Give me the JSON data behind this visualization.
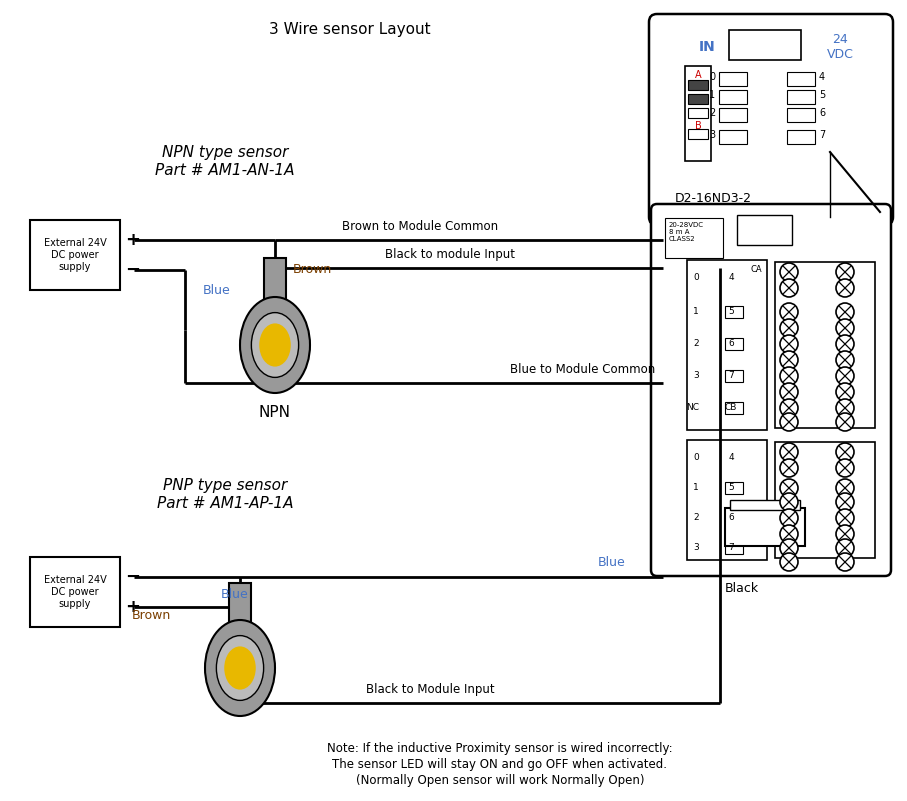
{
  "title": "3 Wire sensor Layout",
  "bg_color": "#ffffff",
  "text_color": "#000000",
  "npn_label1": "NPN type sensor",
  "npn_label2": "Part # AM1-AN-1A",
  "pnp_label1": "PNP type sensor",
  "pnp_label2": "Part # AM1-AP-1A",
  "npn_label": "NPN",
  "box_label": "External 24V\nDC power\nsupply",
  "note_line1": "Note: If the inductive Proximity sensor is wired incorrectly:",
  "note_line2": "The sensor LED will stay ON and go OFF when activated.",
  "note_line3": "(Normally Open sensor will work Normally Open)",
  "brown_to_common": "Brown to Module Common",
  "black_to_input_npn": "Black to module Input",
  "blue_to_common": "Blue to Module Common",
  "blue_pnp": "Blue",
  "black_pnp": "Black",
  "black_to_input_pnp": "Black to Module Input",
  "blue_npn": "Blue",
  "brown_npn": "Brown",
  "blue_pnp2": "Blue",
  "brown_pnp2": "Brown",
  "module_label": "D2-16ND3-2",
  "in_label": "IN",
  "vdc_label": "24\nVDC",
  "sensor_body_color": "#999999",
  "sensor_inner_color": "#bbbbbb",
  "sensor_yellow": "#e8b800",
  "blue_text_color": "#4472c4",
  "brown_text_color": "#7b3f00",
  "label_spec_color": "#4472c4"
}
